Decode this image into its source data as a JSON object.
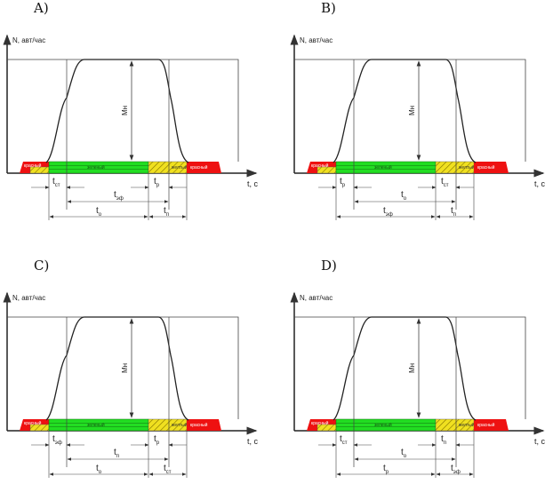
{
  "axis": {
    "y_label": "N, авт/час",
    "x_label": "t, с",
    "amplitude_label": "Mн"
  },
  "bar": {
    "red_label": "красный",
    "yellow_label": "желтый",
    "green_label": "зеленый"
  },
  "colors": {
    "red": "#ee1111",
    "green": "#22dd22",
    "yellow": "#f0e020",
    "line": "#444444"
  },
  "panels": [
    {
      "option": "A)",
      "short_left": {
        "main": "t",
        "sub": "ст"
      },
      "short_right": {
        "main": "t",
        "sub": "р"
      },
      "middle": {
        "main": "t",
        "sub": "эф"
      },
      "bottom_left": {
        "main": "t",
        "sub": "о"
      },
      "bottom_right": {
        "main": "t",
        "sub": "п"
      }
    },
    {
      "option": "B)",
      "short_left": {
        "main": "t",
        "sub": "р"
      },
      "short_right": {
        "main": "t",
        "sub": "ст"
      },
      "middle": {
        "main": "t",
        "sub": "о"
      },
      "bottom_left": {
        "main": "t",
        "sub": "эф"
      },
      "bottom_right": {
        "main": "t",
        "sub": "п"
      }
    },
    {
      "option": "C)",
      "short_left": {
        "main": "t",
        "sub": "эф"
      },
      "short_right": {
        "main": "t",
        "sub": "р"
      },
      "middle": {
        "main": "t",
        "sub": "п"
      },
      "bottom_left": {
        "main": "t",
        "sub": "о"
      },
      "bottom_right": {
        "main": "t",
        "sub": "ст"
      }
    },
    {
      "option": "D)",
      "short_left": {
        "main": "t",
        "sub": "ст"
      },
      "short_right": {
        "main": "t",
        "sub": "п"
      },
      "middle": {
        "main": "t",
        "sub": "о"
      },
      "bottom_left": {
        "main": "t",
        "sub": "р"
      },
      "bottom_right": {
        "main": "t",
        "sub": "эф"
      }
    }
  ]
}
